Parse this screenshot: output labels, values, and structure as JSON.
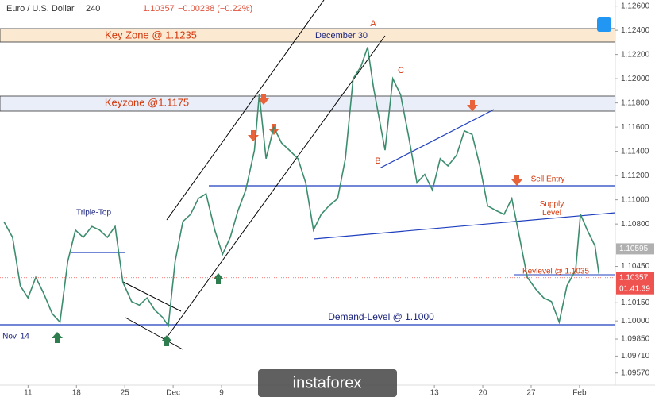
{
  "chart_data": {
    "type": "line",
    "title": "Euro / U.S. Dollar",
    "interval": "240",
    "quote": "1.10357",
    "change": "−0.00238 (−0.22%)",
    "x": [
      -2.5,
      -1.6,
      -0.8,
      0,
      0.8,
      1.6,
      2.5,
      3.3,
      4.1,
      4.9,
      5.7,
      6.6,
      7.4,
      8.2,
      9.0,
      9.8,
      10.7,
      11.5,
      12.3,
      13.1,
      13.9,
      14.5,
      15.2,
      16.0,
      16.8,
      17.6,
      18.4,
      19.3,
      20.1,
      20.9,
      21.7,
      22.5,
      23.4,
      23.9,
      24.6,
      25.4,
      26.2,
      27.0,
      27.9,
      28.7,
      29.5,
      30.3,
      31.1,
      32.0,
      32.8,
      33.6,
      34.4,
      35.1,
      35.7,
      36.3,
      36.9,
      37.7,
      38.5,
      39.3,
      40.2,
      41.0,
      41.8,
      42.6,
      43.4,
      44.3,
      45.1,
      45.9,
      46.7,
      47.5,
      48.4,
      49.2,
      50.0,
      50.8,
      51.6,
      52.5,
      53.3,
      54.1,
      54.9,
      55.7,
      56.6,
      57.1,
      57.8,
      58.6,
      59.0
    ],
    "series": [
      {
        "color": "#3c8d6e",
        "values": [
          1.1082,
          1.1069,
          1.1029,
          1.1019,
          1.1036,
          1.1023,
          1.1006,
          1.0999,
          1.1049,
          1.1075,
          1.1069,
          1.1078,
          1.1075,
          1.1069,
          1.1078,
          1.1032,
          1.1016,
          1.1013,
          1.1019,
          1.1009,
          1.1003,
          1.0996,
          1.1049,
          1.1082,
          1.1088,
          1.1101,
          1.1105,
          1.1075,
          1.1055,
          1.1069,
          1.1091,
          1.1108,
          1.1141,
          1.1187,
          1.1134,
          1.116,
          1.1147,
          1.1141,
          1.1134,
          1.1114,
          1.1075,
          1.1088,
          1.1095,
          1.1101,
          1.1134,
          1.12,
          1.121,
          1.1226,
          1.1193,
          1.1167,
          1.1141,
          1.12,
          1.1187,
          1.1154,
          1.1114,
          1.1121,
          1.1108,
          1.1134,
          1.1128,
          1.1137,
          1.1157,
          1.1154,
          1.1128,
          1.1095,
          1.1091,
          1.1088,
          1.1101,
          1.1069,
          1.1036,
          1.1026,
          1.1019,
          1.1016,
          1.0999,
          1.1029,
          1.1042,
          1.1088,
          1.1075,
          1.1062,
          1.1039
        ]
      }
    ],
    "xlim": [
      -2.9,
      60.7
    ],
    "xticks": [
      {
        "value": 0,
        "label": "11"
      },
      {
        "value": 5,
        "label": "18"
      },
      {
        "value": 10,
        "label": "25"
      },
      {
        "value": 15,
        "label": "Dec"
      },
      {
        "value": 20,
        "label": "9"
      },
      {
        "value": 42,
        "label": "13"
      },
      {
        "value": 47,
        "label": "20"
      },
      {
        "value": 52,
        "label": "27"
      },
      {
        "value": 57,
        "label": "Feb"
      }
    ],
    "ylim": [
      1.0947,
      1.1265
    ],
    "yticks": [
      {
        "value": 1.126,
        "label": "1.12600"
      },
      {
        "value": 1.124,
        "label": "1.12400"
      },
      {
        "value": 1.122,
        "label": "1.12200"
      },
      {
        "value": 1.12,
        "label": "1.12000"
      },
      {
        "value": 1.118,
        "label": "1.11800"
      },
      {
        "value": 1.116,
        "label": "1.11600"
      },
      {
        "value": 1.114,
        "label": "1.11400"
      },
      {
        "value": 1.112,
        "label": "1.11200"
      },
      {
        "value": 1.11,
        "label": "1.11000"
      },
      {
        "value": 1.108,
        "label": "1.10800"
      },
      {
        "value": 1.1045,
        "label": "1.10450"
      },
      {
        "value": 1.1015,
        "label": "1.10150"
      },
      {
        "value": 1.1,
        "label": "1.10000"
      },
      {
        "value": 1.0985,
        "label": "1.09850"
      },
      {
        "value": 1.0971,
        "label": "1.09710"
      },
      {
        "value": 1.0957,
        "label": "1.09570"
      }
    ],
    "price_labels": [
      {
        "value": 1.10595,
        "label": "1.10595",
        "color": "#b0b0b0"
      },
      {
        "value": 1.10357,
        "label": "1.10357",
        "color": "#ef5350"
      }
    ],
    "countdown": "01:41:39",
    "annotations": [
      "Key Zone @ 1.1235",
      "December 30",
      "A",
      "Keyzone @1.1175",
      "C",
      "B",
      "Triple-Top",
      "Sell Entry",
      "Supply\nLevel",
      "Keylevel @ 1.1035",
      "Demand-Level @ 1.1000",
      "Nov. 14"
    ],
    "watermark": "instaforex"
  }
}
